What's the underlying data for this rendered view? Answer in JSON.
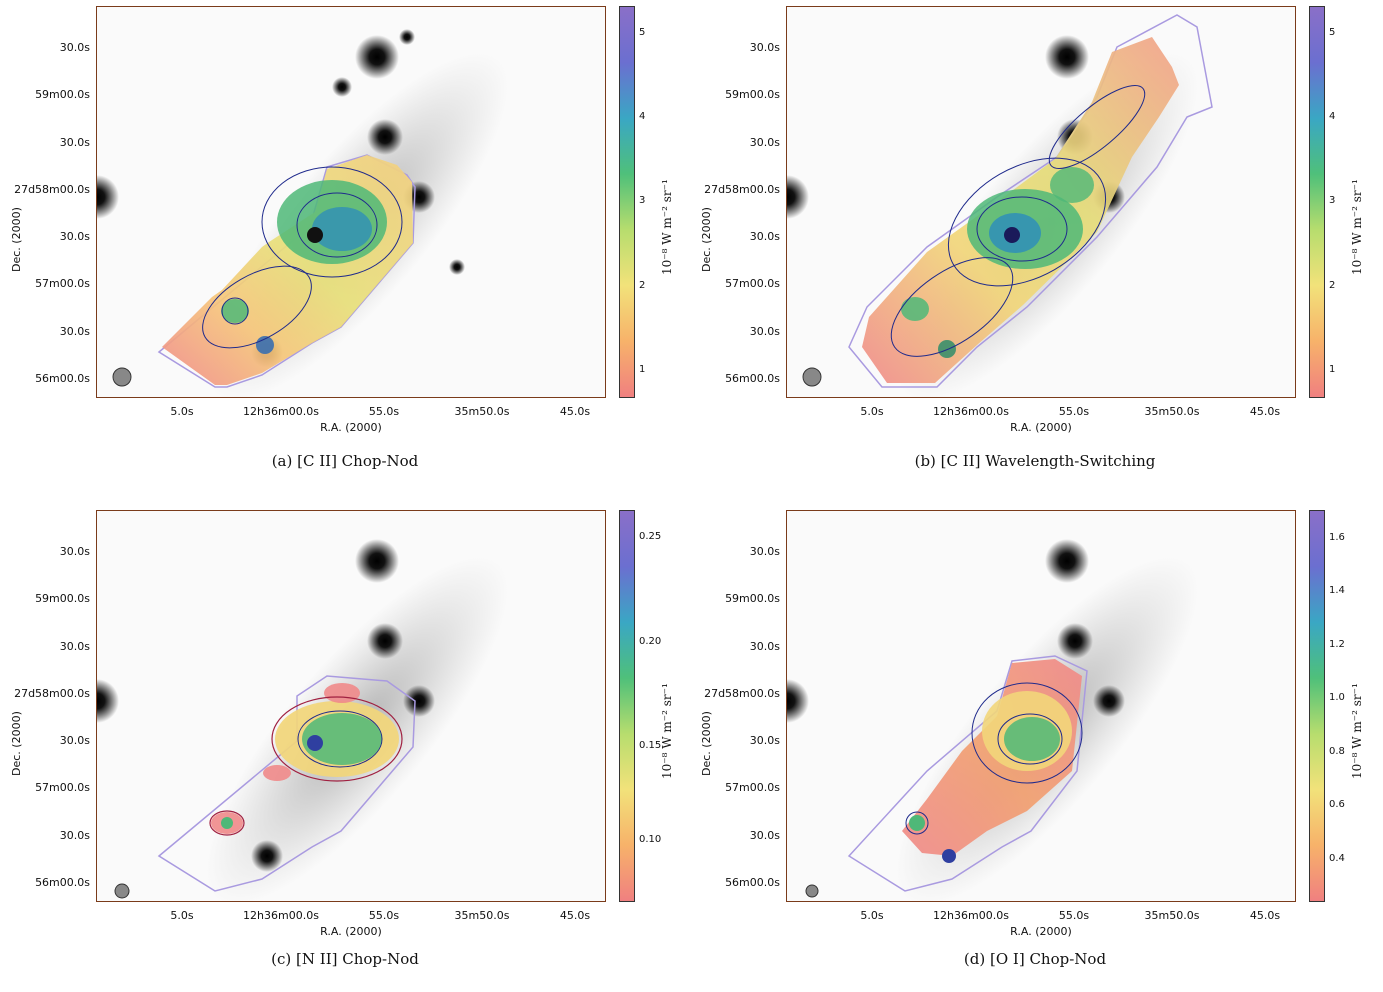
{
  "panels": [
    {
      "caption": "(a) [C II] Chop-Nod",
      "colorbar_ticks": [
        "1",
        "2",
        "3",
        "4",
        "5"
      ],
      "colorbar_unit": "10⁻⁸ W m⁻² sr⁻¹"
    },
    {
      "caption": "(b) [C II] Wavelength-Switching",
      "colorbar_ticks": [
        "1",
        "2",
        "3",
        "4",
        "5"
      ],
      "colorbar_unit": "10⁻⁸ W m⁻² sr⁻¹"
    },
    {
      "caption": "(c) [N II] Chop-Nod",
      "colorbar_ticks": [
        "0.10",
        "0.15",
        "0.20",
        "0.25"
      ],
      "colorbar_unit": "10⁻⁸ W m⁻² sr⁻¹"
    },
    {
      "caption": "(d) [O I] Chop-Nod",
      "colorbar_ticks": [
        "0.4",
        "0.6",
        "0.8",
        "1.0",
        "1.2",
        "1.4",
        "1.6"
      ],
      "colorbar_unit": "10⁻⁸ W m⁻² sr⁻¹"
    }
  ],
  "axes": {
    "xlabel": "R.A. (2000)",
    "ylabel": "Dec. (2000)",
    "x_ticks": [
      "5.0s",
      "12h36m00.0s",
      "55.0s",
      "35m50.0s",
      "45.0s"
    ],
    "y_ticks": [
      "30.0s",
      "59m00.0s",
      "30.0s",
      "27d58m00.0s",
      "30.0s",
      "57m00.0s",
      "30.0s",
      "56m00.0s"
    ]
  },
  "colors": {
    "colormap": [
      "#f08080",
      "#f7b26a",
      "#f2e27a",
      "#b7dd6e",
      "#4fc07a",
      "#3aa7c4",
      "#6b6fd0",
      "#8a6fc8"
    ],
    "contour": "#1f2a8c",
    "footprint": "#a99ae0",
    "frame": "#7a3b1a"
  }
}
